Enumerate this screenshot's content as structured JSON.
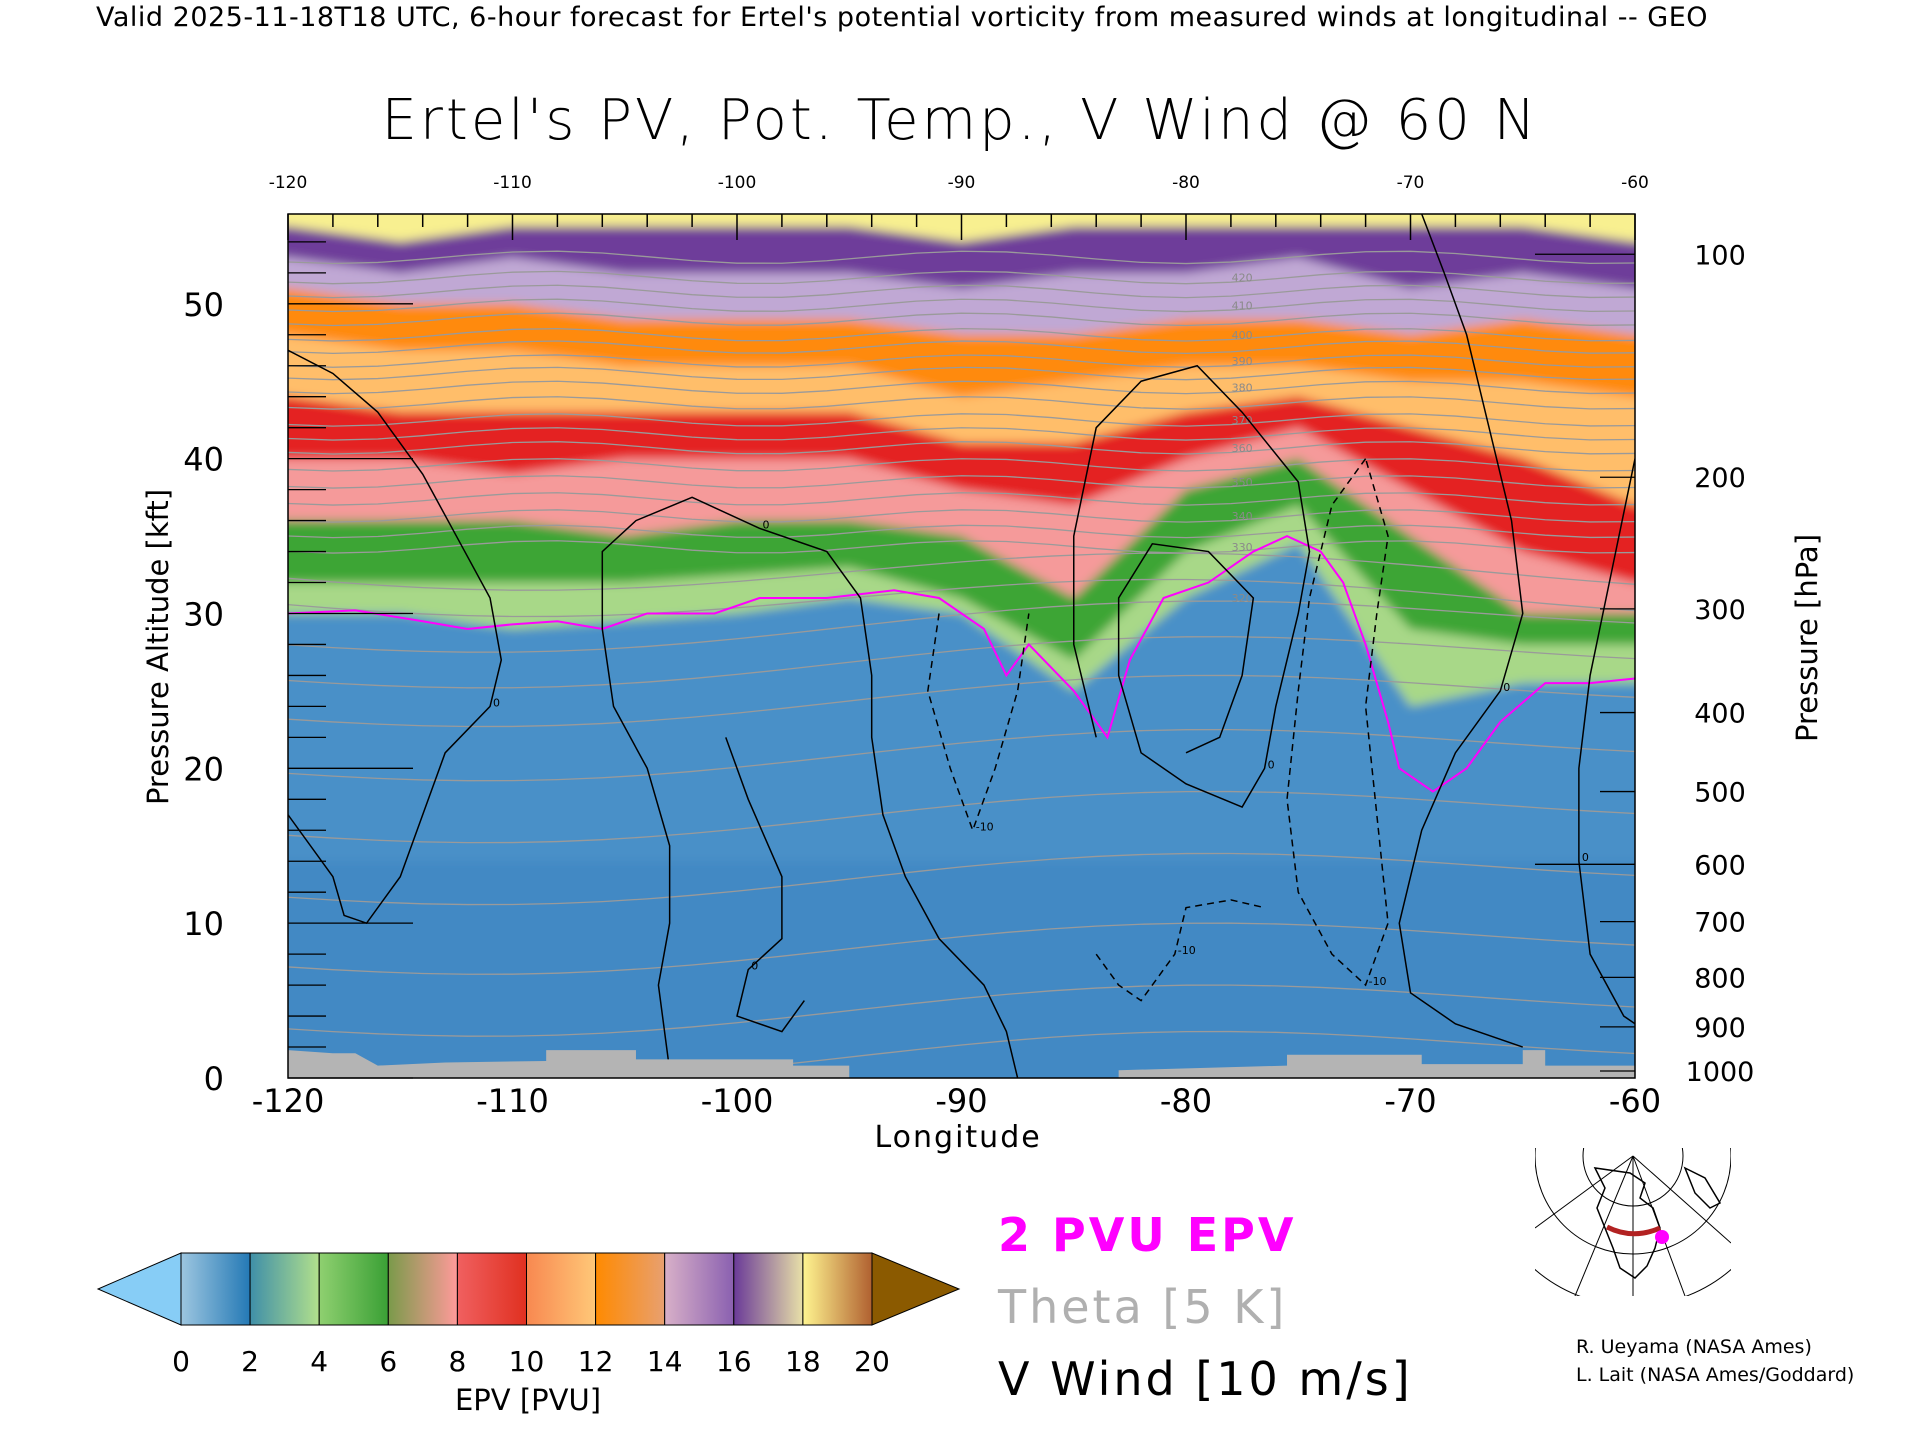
{
  "header": "Valid 2025-11-18T18 UTC, 6-hour forecast for Ertel's potential vorticity from measured winds at longitudinal -- GEO",
  "legend": {
    "pv_label": "2 PVU EPV",
    "theta_label": "Theta [5 K]",
    "wind_label": "V Wind [10 m/s]",
    "pv_color": "#ff00ff",
    "theta_color": "#b0b0b0"
  },
  "credits": [
    "R. Ueyama (NASA Ames)",
    "L. Lait (NASA Ames/Goddard)"
  ],
  "colorbar": {
    "label": "EPV [PVU]",
    "ticks": [
      "0",
      "2",
      "4",
      "6",
      "8",
      "10",
      "12",
      "14",
      "16",
      "18",
      "20"
    ],
    "under_color": "#87cdf6",
    "over_color": "#8b5a00",
    "bands": [
      {
        "from": 0,
        "to": 2,
        "c1": "#9dc6e0",
        "c2": "#2479b5"
      },
      {
        "from": 2,
        "to": 4,
        "c1": "#3f8fa8",
        "c2": "#b2e08c"
      },
      {
        "from": 4,
        "to": 6,
        "c1": "#8fd070",
        "c2": "#3aa035"
      },
      {
        "from": 6,
        "to": 8,
        "c1": "#7a9a4a",
        "c2": "#ff9a9a"
      },
      {
        "from": 8,
        "to": 10,
        "c1": "#f06060",
        "c2": "#e03020"
      },
      {
        "from": 10,
        "to": 12,
        "c1": "#f88850",
        "c2": "#ffc878"
      },
      {
        "from": 12,
        "to": 14,
        "c1": "#ff8a00",
        "c2": "#e8a070"
      },
      {
        "from": 14,
        "to": 16,
        "c1": "#d8b0c8",
        "c2": "#8a60b0"
      },
      {
        "from": 16,
        "to": 18,
        "c1": "#6a3a98",
        "c2": "#e8e0a8"
      },
      {
        "from": 18,
        "to": 20,
        "c1": "#fff590",
        "c2": "#b06030"
      }
    ]
  },
  "chart_data": {
    "type": "heatmap",
    "title": "Ertel's PV, Pot. Temp., V Wind @ 60 N",
    "xlabel": "Longitude",
    "ylabel": "Pressure Altitude [kft]",
    "y2label": "Pressure [hPa]",
    "xlim": [
      -120,
      -60
    ],
    "ylim": [
      0,
      55.8
    ],
    "x_ticks": [
      "-120",
      "-110",
      "-100",
      "-90",
      "-80",
      "-70",
      "-60"
    ],
    "x_tick_values": [
      -120,
      -110,
      -100,
      -90,
      -80,
      -70,
      -60
    ],
    "y_ticks": [
      "0",
      "10",
      "20",
      "30",
      "40",
      "50"
    ],
    "y_tick_values": [
      0,
      10,
      20,
      30,
      40,
      50
    ],
    "pressure_ticks": [
      {
        "label": "100",
        "kft": 53.2
      },
      {
        "label": "200",
        "kft": 38.8
      },
      {
        "label": "300",
        "kft": 30.3
      },
      {
        "label": "400",
        "kft": 23.6
      },
      {
        "label": "500",
        "kft": 18.5
      },
      {
        "label": "600",
        "kft": 13.8
      },
      {
        "label": "700",
        "kft": 10.1
      },
      {
        "label": "800",
        "kft": 6.5
      },
      {
        "label": "900",
        "kft": 3.3
      },
      {
        "label": "1000",
        "kft": 0.45
      }
    ],
    "longitudes": [
      -120,
      -115,
      -110,
      -105,
      -100,
      -95,
      -90,
      -85,
      -80,
      -75,
      -70,
      -65,
      -60
    ],
    "epv_contours_kft": [
      {
        "pvu": 2,
        "kft": [
          30,
          30,
          29,
          29.5,
          30,
          31,
          30,
          25,
          31,
          34.5,
          24,
          25.5,
          25.5
        ]
      },
      {
        "pvu": 4,
        "kft": [
          32,
          32,
          32,
          32,
          32.5,
          33,
          31,
          27,
          34,
          37,
          29,
          28,
          28
        ]
      },
      {
        "pvu": 6,
        "kft": [
          36,
          36,
          36,
          35,
          36,
          36,
          35,
          31,
          38,
          40,
          35,
          30,
          30
        ]
      },
      {
        "pvu": 8,
        "kft": [
          40,
          40,
          39,
          40,
          40,
          40,
          38,
          37,
          40,
          42,
          38,
          34,
          32
        ]
      },
      {
        "pvu": 10,
        "kft": [
          44,
          43,
          43,
          43,
          43,
          43,
          41,
          41,
          43,
          44,
          42,
          40,
          37
        ]
      },
      {
        "pvu": 12,
        "kft": [
          48,
          47,
          47,
          46,
          46,
          46,
          44,
          45,
          46,
          46,
          45,
          45,
          44
        ]
      },
      {
        "pvu": 14,
        "kft": [
          51,
          50,
          50,
          49,
          49,
          49,
          48,
          48,
          49,
          49,
          48,
          49,
          48
        ]
      },
      {
        "pvu": 16,
        "kft": [
          53,
          52,
          53,
          52,
          52,
          52,
          51,
          52,
          52,
          53,
          51,
          52,
          51
        ]
      },
      {
        "pvu": 18,
        "kft": [
          55,
          54,
          55,
          55,
          55,
          55,
          54,
          55,
          55,
          55,
          55,
          55,
          54
        ]
      }
    ],
    "pv2_line": [
      [
        -120,
        30
      ],
      [
        -117,
        30.2
      ],
      [
        -114,
        29.5
      ],
      [
        -112,
        29
      ],
      [
        -110,
        29.3
      ],
      [
        -108,
        29.5
      ],
      [
        -106,
        29
      ],
      [
        -104,
        30
      ],
      [
        -101,
        30
      ],
      [
        -99,
        31
      ],
      [
        -96,
        31
      ],
      [
        -93,
        31.5
      ],
      [
        -91,
        31
      ],
      [
        -89,
        29
      ],
      [
        -88,
        26
      ],
      [
        -87,
        28
      ],
      [
        -85,
        25
      ],
      [
        -83.5,
        22
      ],
      [
        -82.5,
        27
      ],
      [
        -81,
        31
      ],
      [
        -79,
        32
      ],
      [
        -77,
        34
      ],
      [
        -75.5,
        35
      ],
      [
        -74,
        34
      ],
      [
        -73,
        32
      ],
      [
        -72,
        28
      ],
      [
        -71,
        23
      ],
      [
        -70.5,
        20
      ],
      [
        -69,
        18.5
      ],
      [
        -67.5,
        20
      ],
      [
        -66,
        23
      ],
      [
        -64,
        25.5
      ],
      [
        -62,
        25.5
      ],
      [
        -60,
        25.8
      ]
    ],
    "theta_levels": [
      {
        "K": 275,
        "kft": 1.5
      },
      {
        "K": 280,
        "kft": 4.5
      },
      {
        "K": 285,
        "kft": 8.5
      },
      {
        "K": 290,
        "kft": 13
      },
      {
        "K": 295,
        "kft": 17
      },
      {
        "K": 300,
        "kft": 21
      },
      {
        "K": 305,
        "kft": 24.5
      },
      {
        "K": 310,
        "kft": 27
      },
      {
        "K": 315,
        "kft": 29.3
      },
      {
        "K": 320,
        "kft": 31
      },
      {
        "K": 325,
        "kft": 32.7
      },
      {
        "K": 330,
        "kft": 34.3
      },
      {
        "K": 335,
        "kft": 35.3
      },
      {
        "K": 340,
        "kft": 36.3
      },
      {
        "K": 345,
        "kft": 37.4
      },
      {
        "K": 350,
        "kft": 38.5
      },
      {
        "K": 355,
        "kft": 39.6
      },
      {
        "K": 360,
        "kft": 40.7
      },
      {
        "K": 365,
        "kft": 41.6
      },
      {
        "K": 370,
        "kft": 42.5
      },
      {
        "K": 375,
        "kft": 43.6
      },
      {
        "K": 380,
        "kft": 44.6
      },
      {
        "K": 385,
        "kft": 45.5
      },
      {
        "K": 390,
        "kft": 46.3
      },
      {
        "K": 395,
        "kft": 47.2
      },
      {
        "K": 400,
        "kft": 48
      },
      {
        "K": 405,
        "kft": 49
      },
      {
        "K": 410,
        "kft": 49.9
      },
      {
        "K": 415,
        "kft": 50.8
      },
      {
        "K": 420,
        "kft": 51.7
      },
      {
        "K": 425,
        "kft": 53
      }
    ],
    "theta_labels": [
      "320",
      "330",
      "340",
      "350",
      "360",
      "370",
      "380",
      "390",
      "400",
      "410",
      "420"
    ],
    "vwind_contours": [
      {
        "value": "0",
        "dashed": false,
        "points": [
          [
            -120,
            47
          ],
          [
            -118,
            45.5
          ],
          [
            -116,
            43
          ],
          [
            -114,
            39
          ],
          [
            -112.5,
            35
          ],
          [
            -111,
            31
          ],
          [
            -110.5,
            27
          ],
          [
            -111,
            24
          ],
          [
            -113,
            21
          ],
          [
            -114,
            17
          ],
          [
            -115,
            13
          ],
          [
            -116.5,
            10
          ],
          [
            -117.5,
            10.5
          ],
          [
            -118,
            13
          ],
          [
            -120,
            17
          ]
        ]
      },
      {
        "value": "0",
        "dashed": false,
        "points": [
          [
            -103,
            0.5
          ],
          [
            -103.5,
            6
          ],
          [
            -103,
            10
          ],
          [
            -103,
            15
          ],
          [
            -104,
            20
          ],
          [
            -105.5,
            24
          ],
          [
            -106,
            29
          ],
          [
            -106,
            34
          ],
          [
            -104.5,
            36
          ],
          [
            -102,
            37.5
          ],
          [
            -99,
            35.5
          ],
          [
            -96,
            34
          ],
          [
            -94.5,
            31
          ],
          [
            -94,
            26
          ],
          [
            -94,
            22
          ],
          [
            -93.5,
            17
          ],
          [
            -92.5,
            13
          ],
          [
            -91,
            9
          ],
          [
            -89,
            6
          ],
          [
            -88,
            3
          ],
          [
            -87.5,
            0
          ]
        ]
      },
      {
        "value": "0",
        "dashed": false,
        "points": [
          [
            -84,
            22
          ],
          [
            -85,
            28
          ],
          [
            -85,
            35
          ],
          [
            -84,
            42
          ],
          [
            -82,
            45
          ],
          [
            -79.5,
            46
          ],
          [
            -77.5,
            43
          ],
          [
            -75,
            38.5
          ],
          [
            -74.5,
            34
          ],
          [
            -75,
            30
          ],
          [
            -76,
            24
          ],
          [
            -76.5,
            20
          ],
          [
            -77.5,
            17.5
          ],
          [
            -80,
            19
          ],
          [
            -82,
            21
          ],
          [
            -83,
            26
          ],
          [
            -83,
            31
          ],
          [
            -81.5,
            34.5
          ],
          [
            -79,
            34
          ],
          [
            -77,
            31
          ],
          [
            -77.5,
            26
          ],
          [
            -78.5,
            22
          ],
          [
            -80,
            21
          ]
        ]
      },
      {
        "value": "0",
        "dashed": false,
        "points": [
          [
            -69.5,
            55.8
          ],
          [
            -68.5,
            52
          ],
          [
            -67.5,
            48
          ],
          [
            -66.5,
            42
          ],
          [
            -65.5,
            36
          ],
          [
            -65,
            30
          ],
          [
            -66,
            25
          ],
          [
            -68,
            21
          ],
          [
            -69.5,
            16
          ],
          [
            -70.5,
            10
          ],
          [
            -70,
            5.5
          ],
          [
            -68,
            3.5
          ],
          [
            -65,
            2
          ]
        ]
      },
      {
        "value": "0",
        "dashed": false,
        "points": [
          [
            -60,
            40
          ],
          [
            -61,
            33
          ],
          [
            -62,
            26
          ],
          [
            -62.5,
            20
          ],
          [
            -62.5,
            14
          ],
          [
            -62,
            8
          ],
          [
            -60.5,
            4
          ],
          [
            -60,
            3.5
          ]
        ]
      },
      {
        "value": "0",
        "dashed": false,
        "points": [
          [
            -100.5,
            22
          ],
          [
            -99.5,
            18
          ],
          [
            -98,
            13
          ],
          [
            -98,
            9
          ],
          [
            -99.5,
            7
          ],
          [
            -100,
            4
          ],
          [
            -98,
            3
          ],
          [
            -97,
            5
          ]
        ]
      },
      {
        "value": "-10",
        "dashed": true,
        "points": [
          [
            -91,
            30
          ],
          [
            -91.5,
            25
          ],
          [
            -90.5,
            20
          ],
          [
            -89.5,
            16
          ],
          [
            -88.5,
            20
          ],
          [
            -87.5,
            25
          ],
          [
            -87,
            30
          ]
        ]
      },
      {
        "value": "-10",
        "dashed": true,
        "points": [
          [
            -72,
            40
          ],
          [
            -73.5,
            37
          ],
          [
            -74.5,
            31
          ],
          [
            -75,
            25
          ],
          [
            -75.5,
            18
          ],
          [
            -75,
            12
          ],
          [
            -73.5,
            8
          ],
          [
            -72,
            6
          ],
          [
            -71,
            10
          ],
          [
            -71.5,
            17
          ],
          [
            -72,
            24
          ],
          [
            -71.5,
            30
          ],
          [
            -71,
            35
          ],
          [
            -72,
            40
          ]
        ]
      },
      {
        "value": "-10",
        "dashed": true,
        "points": [
          [
            -84,
            8
          ],
          [
            -83,
            6
          ],
          [
            -82,
            5
          ],
          [
            -80.5,
            8
          ],
          [
            -80,
            11
          ],
          [
            -78,
            11.5
          ],
          [
            -76.5,
            11
          ]
        ]
      }
    ],
    "ground_kft": [
      [
        -120,
        1.8
      ],
      [
        -118,
        1.6
      ],
      [
        -117,
        1.6
      ],
      [
        -116,
        0.8
      ],
      [
        -113,
        1
      ],
      [
        -108.5,
        1.1
      ],
      [
        -108.5,
        1.8
      ],
      [
        -104.5,
        1.8
      ],
      [
        -104.5,
        1.2
      ],
      [
        -99,
        1.2
      ],
      [
        -97.5,
        1.2
      ],
      [
        -97.5,
        0.8
      ],
      [
        -95,
        0.8
      ],
      [
        -95,
        0
      ],
      [
        -83,
        0
      ],
      [
        -83,
        0.5
      ],
      [
        -75.5,
        0.8
      ],
      [
        -75.5,
        1.5
      ],
      [
        -69.5,
        1.5
      ],
      [
        -69.5,
        0.9
      ],
      [
        -65,
        0.9
      ],
      [
        -65,
        1.8
      ],
      [
        -64,
        1.8
      ],
      [
        -64,
        0.8
      ],
      [
        -60,
        0.8
      ]
    ]
  }
}
